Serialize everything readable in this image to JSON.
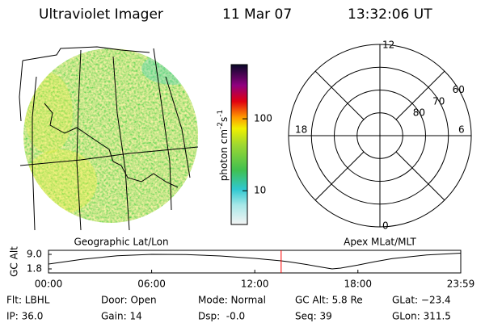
{
  "header": {
    "title": "Ultraviolet Imager",
    "date": "11 Mar 07",
    "time": "13:32:06 UT"
  },
  "image": {
    "caption": "Geographic Lat/Lon"
  },
  "colorbar": {
    "unit": [
      "photon cm",
      "-2",
      "s",
      "-1"
    ],
    "lim": [
      3.4,
      566
    ],
    "log": true,
    "ticks": [
      10,
      100
    ]
  },
  "polar": {
    "caption": "Apex MLat/MLT",
    "lat_lim": [
      90,
      50
    ],
    "lat_ticks": [
      80,
      70,
      60
    ],
    "mlt_ticks": [
      0,
      6,
      12,
      18
    ]
  },
  "altitude": {
    "ylabel": "GC Alt",
    "ylim": [
      -0.2,
      11
    ],
    "yticks": [
      1.8,
      {
        "value": 9,
        "label": "9.0"
      }
    ],
    "xlim": [
      0,
      23.983
    ],
    "xticks": [
      {
        "value": 0,
        "label": "00:00"
      },
      {
        "value": 6,
        "label": "06:00"
      },
      {
        "value": 12,
        "label": "12:00"
      },
      {
        "value": 18,
        "label": "18:00"
      },
      {
        "value": 23.983,
        "label": "23:59"
      }
    ],
    "x": [
      0,
      2,
      4,
      6,
      8,
      10,
      12,
      13.535,
      14,
      15,
      16,
      16.5,
      17,
      18,
      19,
      20,
      22,
      23.983
    ],
    "values": [
      4.2,
      6.6,
      8.3,
      9.0,
      8.9,
      8.2,
      7.0,
      5.8,
      5.3,
      4.0,
      2.5,
      1.8,
      2.2,
      3.7,
      5.4,
      6.9,
      8.7,
      9.6
    ],
    "current_time": 13.535,
    "color": "#000000",
    "marker_color": "#ff0000"
  },
  "footer": {
    "rows": [
      [
        "Flt: LBHL",
        "Door: Open",
        "Mode: Normal",
        "GC Alt: 5.8 Re",
        "GLat: −23.4"
      ],
      [
        "IP: 36.0",
        "Gain: 14",
        "Dsp:  -0.0",
        "Seq: 39",
        "GLon: 311.5"
      ]
    ]
  }
}
